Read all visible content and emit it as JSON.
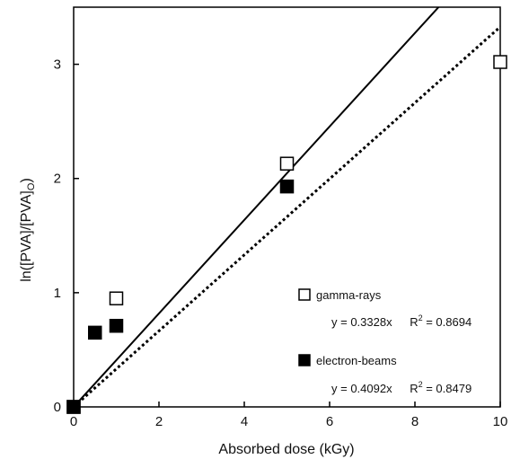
{
  "chart_data": {
    "type": "scatter",
    "xlabel": "Absorbed dose (kGy)",
    "ylabel": "ln([PVA]/[PVA]o)",
    "ylabel_main": "ln([PVA]/[PVA]",
    "ylabel_sub": "O",
    "ylabel_close": ")",
    "xlim": [
      0,
      10
    ],
    "ylim": [
      0,
      3.5
    ],
    "xticks": [
      0,
      2,
      4,
      6,
      8,
      10
    ],
    "yticks": [
      0,
      1,
      2,
      3
    ],
    "series": [
      {
        "name": "gamma-rays",
        "marker": "open-square",
        "color": "#000000",
        "x": [
          0,
          1,
          5,
          10
        ],
        "y": [
          0,
          0.95,
          2.13,
          3.02
        ],
        "fit": {
          "slope": 0.3328,
          "style": "dotted",
          "equation": "y = 0.3328x",
          "r2_label": "R",
          "r2_sup": "2",
          "r2_value": " = 0.8694"
        }
      },
      {
        "name": "electron-beams",
        "marker": "filled-square",
        "color": "#000000",
        "x": [
          0,
          0.5,
          1,
          5
        ],
        "y": [
          0,
          0.65,
          0.71,
          1.93
        ],
        "fit": {
          "slope": 0.4092,
          "style": "solid",
          "equation": "y = 0.4092x",
          "r2_label": "R",
          "r2_sup": "2",
          "r2_value": " = 0.8479"
        }
      }
    ],
    "legend_position": "bottom-right",
    "grid": false
  }
}
